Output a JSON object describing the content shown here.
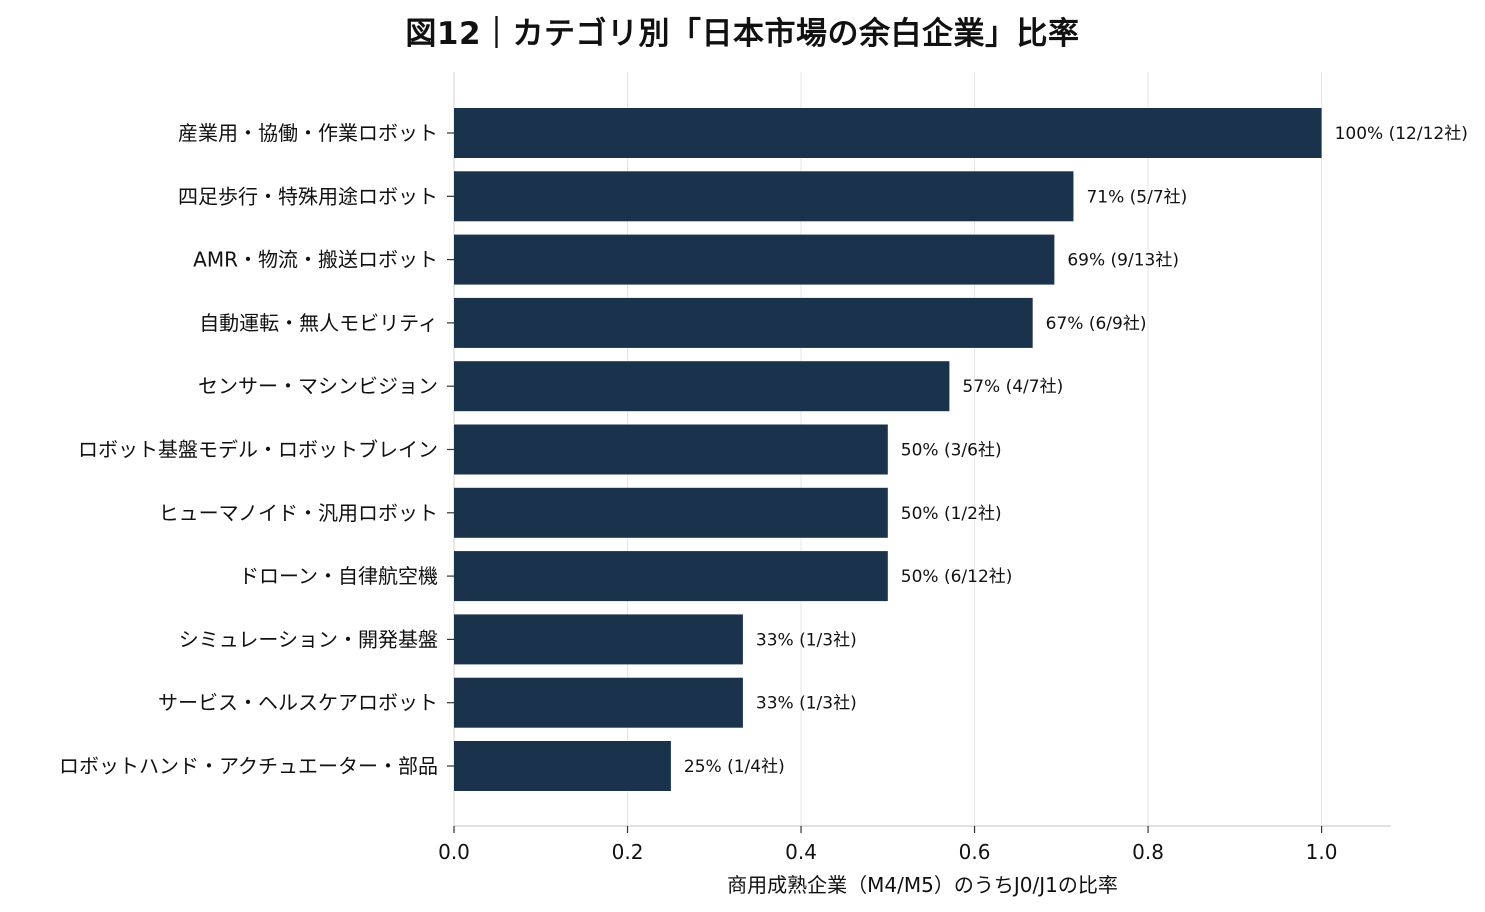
{
  "chart_data": {
    "type": "bar",
    "orientation": "horizontal",
    "title": "図12｜カテゴリ別「日本市場の余白企業」比率",
    "xlabel": "商用成熟企業（M4/M5）のうちJ0/J1の比率",
    "ylabel": "",
    "xlim": [
      0,
      1.08
    ],
    "xticks": [
      "0.0",
      "0.2",
      "0.4",
      "0.6",
      "0.8",
      "1.0"
    ],
    "grid": "vertical",
    "bar_color": "#1b324d",
    "categories": [
      "産業用・協働・作業ロボット",
      "四足歩行・特殊用途ロボット",
      "AMR・物流・搬送ロボット",
      "自動運転・無人モビリティ",
      "センサー・マシンビジョン",
      "ロボット基盤モデル・ロボットブレイン",
      "ヒューマノイド・汎用ロボット",
      "ドローン・自律航空機",
      "シミュレーション・開発基盤",
      "サービス・ヘルスケアロボット",
      "ロボットハンド・アクチュエーター・部品"
    ],
    "values": [
      1.0,
      0.714,
      0.692,
      0.667,
      0.571,
      0.5,
      0.5,
      0.5,
      0.333,
      0.333,
      0.25
    ],
    "data_labels": [
      "100% (12/12社)",
      "71% (5/7社)",
      "69% (9/13社)",
      "67% (6/9社)",
      "57% (4/7社)",
      "50% (3/6社)",
      "50% (1/2社)",
      "50% (6/12社)",
      "33% (1/3社)",
      "33% (1/3社)",
      "25% (1/4社)"
    ]
  }
}
